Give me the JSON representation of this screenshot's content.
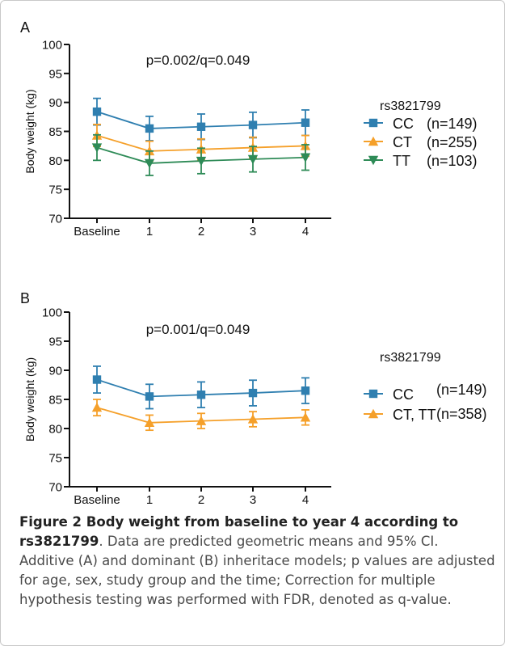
{
  "chart_data": [
    {
      "type": "line",
      "panel_label": "A",
      "annotation": "p=0.002/q=0.049",
      "ylabel": "Body weight (kg)",
      "xlabel": "",
      "categories": [
        "Baseline",
        "1",
        "2",
        "3",
        "4"
      ],
      "ylim": [
        70,
        100
      ],
      "yticks": [
        "70",
        "75",
        "80",
        "85",
        "90",
        "95",
        "100"
      ],
      "legend_title": "rs3821799",
      "legend_placement": "right",
      "grid": false,
      "series": [
        {
          "name": "CC",
          "n_label": "(n=149)",
          "color": "#2f7fb0",
          "marker": "square",
          "values": [
            88.4,
            85.5,
            85.8,
            86.1,
            86.5
          ],
          "ci_low": [
            86.1,
            83.4,
            83.6,
            83.9,
            84.3
          ],
          "ci_high": [
            90.7,
            87.6,
            88.0,
            88.3,
            88.7
          ]
        },
        {
          "name": "CT",
          "n_label": "(n=255)",
          "color": "#f5a02a",
          "marker": "triangle-up",
          "values": [
            84.3,
            81.6,
            81.9,
            82.2,
            82.5
          ],
          "ci_low": [
            82.4,
            79.9,
            80.1,
            80.4,
            80.7
          ],
          "ci_high": [
            86.2,
            83.3,
            83.7,
            84.0,
            84.3
          ]
        },
        {
          "name": "TT",
          "n_label": "(n=103)",
          "color": "#2e8b57",
          "marker": "triangle-down",
          "values": [
            82.2,
            79.5,
            79.9,
            80.2,
            80.5
          ],
          "ci_low": [
            80.0,
            77.4,
            77.7,
            78.0,
            78.3
          ],
          "ci_high": [
            84.4,
            81.6,
            82.1,
            82.4,
            82.7
          ]
        }
      ]
    },
    {
      "type": "line",
      "panel_label": "B",
      "annotation": "p=0.001/q=0.049",
      "ylabel": "Body weight (kg)",
      "xlabel": "",
      "categories": [
        "Baseline",
        "1",
        "2",
        "3",
        "4"
      ],
      "ylim": [
        70,
        100
      ],
      "yticks": [
        "70",
        "75",
        "80",
        "85",
        "90",
        "95",
        "100"
      ],
      "legend_title": "rs3821799",
      "legend_placement": "right",
      "grid": false,
      "series": [
        {
          "name": "CC",
          "n_label": "(n=149)",
          "color": "#2f7fb0",
          "marker": "square",
          "values": [
            88.4,
            85.5,
            85.8,
            86.1,
            86.5
          ],
          "ci_low": [
            86.1,
            83.4,
            83.6,
            83.9,
            84.3
          ],
          "ci_high": [
            90.7,
            87.6,
            88.0,
            88.3,
            88.7
          ]
        },
        {
          "name": "CT, TT",
          "n_label": "(n=358)",
          "color": "#f5a02a",
          "marker": "triangle-up",
          "values": [
            83.6,
            81.0,
            81.3,
            81.6,
            81.9
          ],
          "ci_low": [
            82.2,
            79.7,
            80.0,
            80.3,
            80.6
          ],
          "ci_high": [
            85.0,
            82.3,
            82.6,
            82.9,
            83.2
          ]
        }
      ]
    }
  ],
  "caption": {
    "bold": "Figure 2 Body weight from baseline to year 4 according to rs3821799",
    "text": ". Data are predicted geometric means and 95% CI. Additive (A) and dominant (B) inheritace models; p values are adjusted for age, sex, study group and the time; Correction for multiple hypothesis testing was performed with FDR, denoted as q-value."
  }
}
